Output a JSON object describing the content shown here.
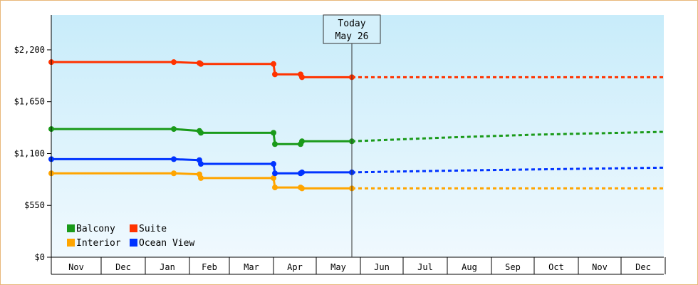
{
  "chart_data": {
    "type": "line",
    "yticks": [
      "$0",
      "$550",
      "$1,100",
      "$1,650",
      "$2,200"
    ],
    "ytick_values": [
      0,
      550,
      1100,
      1650,
      2200
    ],
    "ylim": [
      0,
      2570
    ],
    "xlim": [
      "Oct 27",
      "Dec 31"
    ],
    "month_labels": [
      {
        "label": "Nov",
        "start": "Oct 27",
        "end": "Nov 30"
      },
      {
        "label": "Dec",
        "start": "Dec 1",
        "end": "Dec 31"
      },
      {
        "label": "Jan",
        "start": "Jan 1",
        "end": "Jan 31"
      },
      {
        "label": "Feb",
        "start": "Feb 1",
        "end": "Feb 28"
      },
      {
        "label": "Mar",
        "start": "Mar 1",
        "end": "Mar 31"
      },
      {
        "label": "Apr",
        "start": "Apr 1",
        "end": "Apr 30"
      },
      {
        "label": "May",
        "start": "May 1",
        "end": "May 31"
      },
      {
        "label": "Jun",
        "start": "Jun 1",
        "end": "Jun 30"
      },
      {
        "label": "Jul",
        "start": "Jul 1",
        "end": "Jul 31"
      },
      {
        "label": "Aug",
        "start": "Aug 1",
        "end": "Aug 31"
      },
      {
        "label": "Sep",
        "start": "Sep 1",
        "end": "Sep 30"
      },
      {
        "label": "Oct",
        "start": "Oct 1",
        "end": "Oct 31"
      },
      {
        "label": "Nov",
        "start": "Nov 1",
        "end": "Nov 30"
      },
      {
        "label": "Dec",
        "start": "Dec 1",
        "end": "Dec 31"
      }
    ],
    "today": {
      "line1": "Today",
      "line2": "May 26",
      "date": "May 26"
    },
    "grid": false,
    "legend_position": "bottom-left",
    "series": [
      {
        "name": "Balcony",
        "color": "#1a9a1a",
        "points": [
          [
            "Oct 27",
            1360
          ],
          [
            "Jan 21",
            1360
          ],
          [
            "Feb 8",
            1340
          ],
          [
            "Feb 9",
            1320
          ],
          [
            "Apr 1",
            1320
          ],
          [
            "Apr 2",
            1200
          ],
          [
            "Apr 20",
            1200
          ],
          [
            "Apr 21",
            1230
          ],
          [
            "May 26",
            1230
          ]
        ],
        "markers": [
          [
            "Oct 27",
            1360
          ],
          [
            "Jan 21",
            1360
          ],
          [
            "Feb 8",
            1340
          ],
          [
            "Feb 9",
            1320
          ],
          [
            "Apr 1",
            1320
          ],
          [
            "Apr 2",
            1200
          ],
          [
            "Apr 20",
            1200
          ],
          [
            "Apr 21",
            1230
          ],
          [
            "May 26",
            1230
          ]
        ],
        "forecast": [
          [
            "May 26",
            1230
          ],
          [
            "Aug 1",
            1270
          ],
          [
            "Oct 1",
            1300
          ],
          [
            "Dec 31",
            1330
          ]
        ]
      },
      {
        "name": "Suite",
        "color": "#ff3300",
        "points": [
          [
            "Oct 27",
            2070
          ],
          [
            "Jan 21",
            2070
          ],
          [
            "Feb 8",
            2060
          ],
          [
            "Feb 9",
            2050
          ],
          [
            "Apr 1",
            2050
          ],
          [
            "Apr 2",
            1940
          ],
          [
            "Apr 20",
            1940
          ],
          [
            "Apr 21",
            1910
          ],
          [
            "May 26",
            1910
          ]
        ],
        "markers": [
          [
            "Oct 27",
            2070
          ],
          [
            "Jan 21",
            2070
          ],
          [
            "Feb 8",
            2060
          ],
          [
            "Feb 9",
            2050
          ],
          [
            "Apr 1",
            2050
          ],
          [
            "Apr 2",
            1940
          ],
          [
            "Apr 20",
            1940
          ],
          [
            "Apr 21",
            1910
          ],
          [
            "May 26",
            1910
          ]
        ],
        "forecast": [
          [
            "May 26",
            1910
          ],
          [
            "Dec 31",
            1910
          ]
        ]
      },
      {
        "name": "Interior",
        "color": "#ffa500",
        "points": [
          [
            "Oct 27",
            890
          ],
          [
            "Jan 21",
            890
          ],
          [
            "Feb 8",
            880
          ],
          [
            "Feb 9",
            840
          ],
          [
            "Apr 1",
            840
          ],
          [
            "Apr 2",
            740
          ],
          [
            "Apr 20",
            740
          ],
          [
            "Apr 21",
            730
          ],
          [
            "May 26",
            730
          ]
        ],
        "markers": [
          [
            "Oct 27",
            890
          ],
          [
            "Jan 21",
            890
          ],
          [
            "Feb 8",
            880
          ],
          [
            "Feb 9",
            840
          ],
          [
            "Apr 1",
            840
          ],
          [
            "Apr 2",
            740
          ],
          [
            "Apr 20",
            740
          ],
          [
            "Apr 21",
            730
          ],
          [
            "May 26",
            730
          ]
        ],
        "forecast": [
          [
            "May 26",
            730
          ],
          [
            "Dec 31",
            730
          ]
        ]
      },
      {
        "name": "Ocean View",
        "color": "#0033ff",
        "points": [
          [
            "Oct 27",
            1040
          ],
          [
            "Jan 21",
            1040
          ],
          [
            "Feb 8",
            1030
          ],
          [
            "Feb 9",
            990
          ],
          [
            "Apr 1",
            990
          ],
          [
            "Apr 2",
            890
          ],
          [
            "Apr 20",
            890
          ],
          [
            "Apr 21",
            900
          ],
          [
            "May 26",
            900
          ]
        ],
        "markers": [
          [
            "Oct 27",
            1040
          ],
          [
            "Jan 21",
            1040
          ],
          [
            "Feb 8",
            1030
          ],
          [
            "Feb 9",
            990
          ],
          [
            "Apr 1",
            990
          ],
          [
            "Apr 2",
            890
          ],
          [
            "Apr 20",
            890
          ],
          [
            "Apr 21",
            900
          ],
          [
            "May 26",
            900
          ]
        ],
        "forecast": [
          [
            "May 26",
            900
          ],
          [
            "Jul 1",
            910
          ],
          [
            "Sep 1",
            925
          ],
          [
            "Dec 31",
            950
          ]
        ]
      }
    ]
  }
}
